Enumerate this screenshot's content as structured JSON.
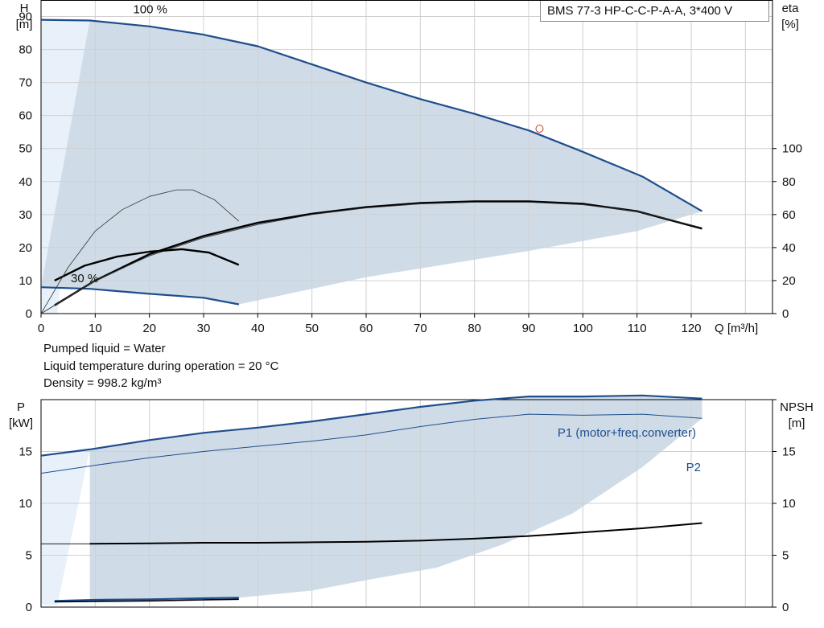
{
  "title": "BMS 77-3 HP-C-C-P-A-A, 3*400 V",
  "info_lines": [
    "Pumped liquid = Water",
    "Liquid temperature during operation = 20 °C",
    "Density = 998.2 kg/m³"
  ],
  "chart_data": [
    {
      "type": "line",
      "name": "head-eta-chart",
      "xlabel": "Q [m³/h]",
      "ylabel": "H\n[m]",
      "y2label": "eta\n[%]",
      "xlim": [
        0,
        135
      ],
      "ylim": [
        0,
        95
      ],
      "y2lim": [
        0,
        190
      ],
      "xticks": [
        0,
        10,
        20,
        30,
        40,
        50,
        60,
        70,
        80,
        90,
        100,
        110,
        120
      ],
      "yticks": [
        0,
        10,
        20,
        30,
        40,
        50,
        60,
        70,
        80,
        90
      ],
      "y2ticks": [
        0,
        20,
        40,
        60,
        80,
        100
      ],
      "annotations": [
        {
          "text": "100 %",
          "x": 17,
          "y": 91
        },
        {
          "text": "30 %",
          "x": 5.5,
          "y": 9.5
        }
      ],
      "operating_point": {
        "x": 92,
        "y": 56
      },
      "colors": {
        "head": "#1f4e8c",
        "eta": "#000000",
        "area": "#cfdce8",
        "area_light": "#e8f0f9"
      },
      "series": [
        {
          "name": "",
          "role": "head-max",
          "x": [
            0,
            9,
            20,
            30,
            40,
            50,
            60,
            70,
            80,
            90,
            100,
            111,
            122
          ],
          "y": [
            89,
            88.8,
            87,
            84.5,
            81,
            75.5,
            70,
            65,
            60.5,
            55.5,
            49,
            41.5,
            31
          ]
        },
        {
          "name": "",
          "role": "head-min",
          "x": [
            0,
            9,
            20,
            30,
            36.5
          ],
          "y": [
            8,
            7.5,
            6,
            4.8,
            2.8
          ]
        },
        {
          "name": "",
          "role": "eta-max",
          "x": [
            2.5,
            10,
            20,
            30,
            40,
            50,
            60,
            70,
            80,
            90,
            100,
            110,
            122
          ],
          "y": [
            5,
            20,
            36,
            47,
            55,
            60.5,
            64.5,
            67,
            68,
            68,
            66.5,
            62,
            51.5
          ]
        },
        {
          "name": "",
          "role": "eta-max-thin",
          "x": [
            0,
            10,
            20,
            30,
            40,
            50,
            60,
            70,
            80,
            90,
            100,
            110,
            122
          ],
          "y": [
            0,
            20,
            35,
            46,
            54,
            60,
            64,
            66.5,
            67.5,
            67.5,
            66,
            62,
            52
          ]
        },
        {
          "name": "",
          "role": "eta-min",
          "x": [
            2.5,
            8,
            14,
            20,
            26,
            31,
            36.5
          ],
          "y": [
            20,
            29,
            34.5,
            37.5,
            39,
            37,
            29.5
          ]
        },
        {
          "name": "",
          "role": "eta-min-thin",
          "x": [
            0,
            5,
            10,
            15,
            20,
            25,
            28,
            32,
            36.5
          ],
          "y": [
            0,
            28,
            50,
            63,
            71,
            75,
            75,
            69,
            56
          ]
        }
      ]
    },
    {
      "type": "line",
      "name": "power-npsh-chart",
      "xlim": [
        0,
        135
      ],
      "ylabel": "P\n[kW]",
      "y2label": "NPSH\n[m]",
      "ylim": [
        0,
        20
      ],
      "yticks": [
        0,
        5,
        10,
        15
      ],
      "y2ticks": [
        0,
        5,
        10,
        15
      ],
      "colors": {
        "power": "#1f4e8c",
        "npsh": "#000000",
        "area": "#cfdce8",
        "area_light": "#e8f0f9"
      },
      "series": [
        {
          "name": "P1 (motor+freq.converter)",
          "x": [
            0,
            9,
            20,
            30,
            40,
            50,
            60,
            70,
            80,
            90,
            100,
            111,
            122
          ],
          "y": [
            14.6,
            15.2,
            16.1,
            16.8,
            17.3,
            17.9,
            18.6,
            19.3,
            19.9,
            20.3,
            20.3,
            20.4,
            20.1
          ]
        },
        {
          "name": "P2",
          "x": [
            0,
            9,
            20,
            30,
            40,
            50,
            60,
            70,
            80,
            90,
            100,
            111,
            122
          ],
          "y": [
            12.9,
            13.6,
            14.4,
            15,
            15.5,
            16,
            16.6,
            17.4,
            18.1,
            18.6,
            18.5,
            18.6,
            18.2
          ]
        },
        {
          "name": "",
          "role": "npsh",
          "x": [
            0,
            9,
            20,
            30,
            40,
            50,
            60,
            70,
            80,
            90,
            100,
            111,
            122
          ],
          "y": [
            6.1,
            6.1,
            6.15,
            6.2,
            6.2,
            6.25,
            6.3,
            6.4,
            6.6,
            6.85,
            7.2,
            7.6,
            8.1
          ]
        },
        {
          "name": "",
          "role": "power-min",
          "x": [
            2.5,
            10,
            20,
            30,
            36.5
          ],
          "y": [
            0.6,
            0.7,
            0.75,
            0.85,
            0.9
          ]
        },
        {
          "name": "",
          "role": "npsh-min",
          "x": [
            2.5,
            10,
            20,
            30,
            36.5
          ],
          "y": [
            0.5,
            0.55,
            0.6,
            0.7,
            0.75
          ]
        }
      ]
    }
  ]
}
